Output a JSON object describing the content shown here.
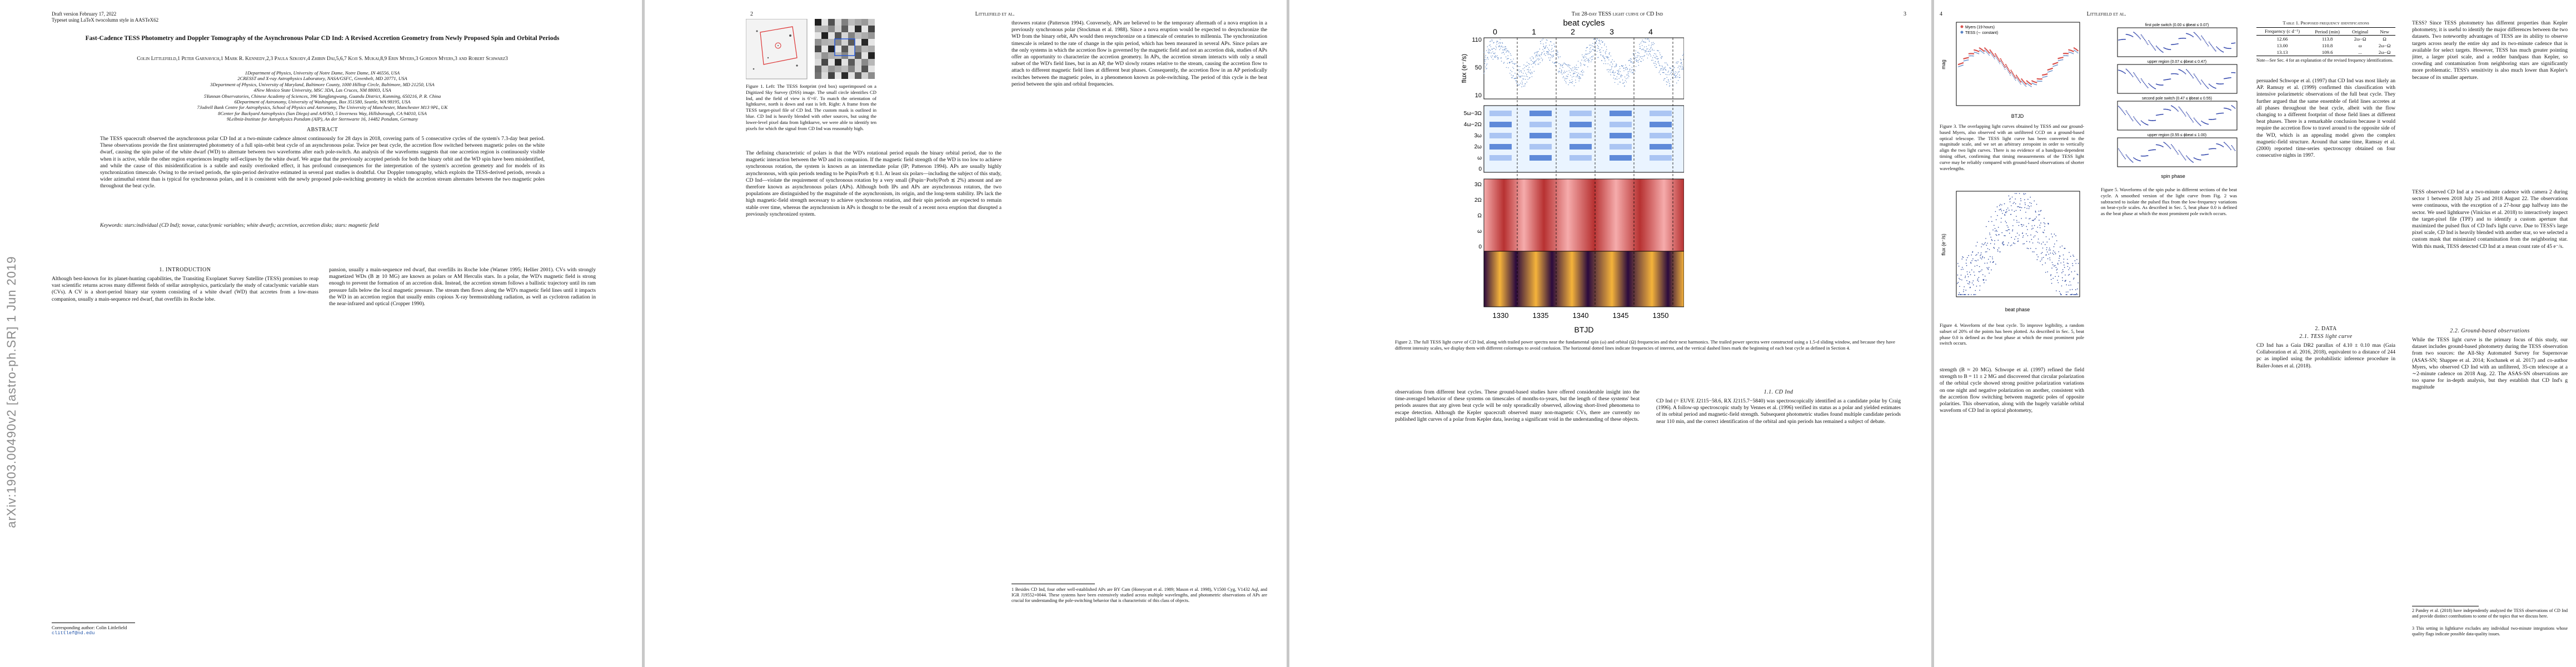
{
  "arxiv_id": "arXiv:1903.00490v2 [astro-ph.SR] 1 Jun 2019",
  "page1": {
    "draft": "Draft version February 17, 2022",
    "typeset": "Typeset using LaTeX twocolumn style in AASTeX62",
    "title": "Fast-Cadence TESS Photometry and Doppler Tomography of the Asynchronous Polar CD Ind: A Revised Accretion Geometry from Newly Proposed Spin and Orbital Periods",
    "authors": "Colin Littlefield,1 Peter Garnavich,1 Mark R. Kennedy,2,3 Paula Szkody,4 Zhibin Dai,5,6,7 Koji S. Mukai,8,9 Erin Myers,3 Gordon Myers,3 and Robert Schwarz3",
    "affiliations": [
      "1Department of Physics, University of Notre Dame, Notre Dame, IN 46556, USA",
      "2CRESST and X-ray Astrophysics Laboratory, NASA/GSFC, Greenbelt, MD 20771, USA",
      "3Department of Physics, University of Maryland, Baltimore County, 1000 Hilltop Circle, Baltimore, MD 21250, USA",
      "4New Mexico State University, MSC 3DA, Las Cruces, NM 88003, USA",
      "5Yunnan Observatories, Chinese Academy of Sciences, 396 Yangfangwang, Guandu District, Kunming, 650216, P. R. China",
      "6Department of Astronomy, University of Washington, Box 351580, Seattle, WA 98195, USA",
      "7Jodrell Bank Centre for Astrophysics, School of Physics and Astronomy, The University of Manchester, Manchester M13 9PL, UK",
      "8Center for Backyard Astrophysics (San Diego) and AAVSO, 5 Inverness Way, Hillsborough, CA 94010, USA",
      "9Leibniz-Institute for Astrophysics Potsdam (AIP), An der Sternwarte 16, 14482 Potsdam, Germany"
    ],
    "abstract_heading": "ABSTRACT",
    "abstract": "The TESS spacecraft observed the asynchronous polar CD Ind at a two-minute cadence almost continuously for 28 days in 2018, covering parts of 5 consecutive cycles of the system's 7.3-day beat period. These observations provide the first uninterrupted photometry of a full spin-orbit beat cycle of an asynchronous polar. Twice per beat cycle, the accretion flow switched between magnetic poles on the white dwarf, causing the spin pulse of the white dwarf (WD) to alternate between two waveforms after each pole-switch. An analysis of the waveforms suggests that one accretion region is continuously visible when it is active, while the other region experiences lengthy self-eclipses by the white dwarf. We argue that the previously accepted periods for both the binary orbit and the WD spin have been misidentified, and while the cause of this misidentification is a subtle and easily overlooked effect, it has profound consequences for the interpretation of the system's accretion geometry and for models of its synchronization timescale. Owing to the revised periods, the spin-period derivative estimated in several past studies is doubtful. Our Doppler tomography, which exploits the TESS-derived periods, reveals a wider azimuthal extent than is typical for synchronous polars, and it is consistent with the newly proposed pole-switching geometry in which the accretion stream alternates between the two magnetic poles throughout the beat cycle.",
    "keywords": "Keywords: stars:individual (CD Ind); novae, cataclysmic variables; white dwarfs; accretion, accretion disks; stars: magnetic field",
    "intro_heading": "1. INTRODUCTION",
    "intro_col1": "Although best-known for its planet-hunting capabilities, the Transiting Exoplanet Survey Satellite (TESS) promises to reap vast scientific returns across many different fields of stellar astrophysics, particularly the study of cataclysmic variable stars (CVs). A CV is a short-period binary star system consisting of a white dwarf (WD) that accretes from a low-mass companion, usually a main-sequence red dwarf, that overfills its Roche lobe.",
    "intro_col2": "pansion, usually a main-sequence red dwarf, that overfills its Roche lobe (Warner 1995; Hellier 2001). CVs with strongly magnetized WDs (B ≳ 10 MG) are known as polars or AM Herculis stars. In a polar, the WD's magnetic field is strong enough to prevent the formation of an accretion disk. Instead, the accretion stream follows a ballistic trajectory until its ram pressure falls below the local magnetic pressure. The stream then flows along the WD's magnetic field lines until it impacts the WD in an accretion region that usually emits copious X-ray bremsstrahlung radiation, as well as cyclotron radiation in the near-infrared and optical (Cropper 1990).",
    "corresponding": "Corresponding author: Colin Littlefield",
    "email": "clittlef@nd.edu"
  },
  "page2": {
    "header_left": "2",
    "header_center": "Littlefield et al.",
    "fig1_caption": "Figure 1. Left: The TESS footprint (red box) superimposed on a Digitized Sky Survey (DSS) image. The small circle identifies CD Ind, and the field of view is 6'×6'. To match the orientation of lightkurve, north is down and east is left. Right: A frame from the TESS target-pixel file of CD Ind. The custom mask is outlined in blue. CD Ind is heavily blended with other sources, but using the lower-level pixel data from lightkurve, we were able to identify ten pixels for which the signal from CD Ind was reasonably high.",
    "col1_body": "The defining characteristic of polars is that the WD's rotational period equals the binary orbital period, due to the magnetic interaction between the WD and its companion. If the magnetic field strength of the WD is too low to achieve synchronous rotation, the system is known as an intermediate polar (IP; Patterson 1994). APs are usually highly asynchronous, with spin periods tending to be Pspin/Porb ≲ 0.1. At least six polars—including the subject of this study, CD Ind—violate the requirement of synchronous rotation by a very small (|Pspin−Porb|/Porb ≲ 2%) amount and are therefore known as asynchronous polars (APs). Although both IPs and APs are asynchronous rotators, the two populations are distinguished by the magnitude of the asynchronism, its origin, and the long-term stability. IPs lack the high magnetic-field strength necessary to achieve synchronous rotation, and their spin periods are expected to remain stable over time, whereas the asynchronism in APs is thought to be the result of a recent nova eruption that disrupted a previously synchronized system.",
    "col2_body": "throwers rotator (Patterson 1994). Conversely, APs are believed to be the temporary aftermath of a nova eruption in a previously synchronous polar (Stockman et al. 1988). Since a nova eruption would be expected to desynchronize the WD from the binary orbit, APs would then resynchronize on a timescale of centuries to millennia. The synchronization timescale is related to the rate of change in the spin period, which has been measured in several APs. Since polars are the only systems in which the accretion flow is governed by the magnetic field and not an accretion disk, studies of APs offer an opportunity to characterize the accretion geometry. In APs, the accretion stream interacts with only a small subset of the WD's field lines, but in an AP, the WD slowly rotates relative to the stream, causing the accretion flow to attach to different magnetic field lines at different beat phases. Consequently, the accretion flow in an AP periodically switches between the magnetic poles, in a phenomenon known as pole-switching. The period of this cycle is the beat period between the spin and orbital frequencies.",
    "fn1": "1 Besides CD Ind, four other well-established APs are BY Cam (Honeycutt et al. 1989; Mason et al. 1998), V1500 Cyg, V1432 Aql, and IGR J19552+0044. These systems have been extensively studied across multiple wavelengths, and photometric observations of APs are crucial for understanding the pole-switching behavior that is characteristic of this class of objects."
  },
  "page3": {
    "header_center": "The 28-day TESS light curve of CD Ind",
    "header_right": "3",
    "beat_title": "beat cycles",
    "beat_ticks": [
      "0",
      "1",
      "2",
      "3",
      "4"
    ],
    "flux_ylabel": "flux (e⁻/s)",
    "flux_yticks": [
      "110",
      "50",
      "10"
    ],
    "spin_ylabel": "ω",
    "spin_yticks": [
      "5ω−3Ω",
      "4ω−2Ω",
      "3ω",
      "2ω",
      "ω",
      "0"
    ],
    "orb_yticks": [
      "3Ω",
      "2Ω",
      "Ω",
      "ω",
      "0"
    ],
    "xlabel": "BTJD",
    "xticks": [
      "1330",
      "1335",
      "1340",
      "1345",
      "1350"
    ],
    "fig2_caption": "Figure 2. The full TESS light curve of CD Ind, along with trailed power spectra near the fundamental spin (ω) and orbital (Ω) frequencies and their next harmonics. The trailed power spectra were constructed using a 1.5-d sliding window, and because they have different intensity scales, we display them with different colormaps to avoid confusion. The horizontal dotted lines indicate frequencies of interest, and the vertical dashed lines mark the beginning of each beat cycle as defined in Section 4.",
    "col1_body": "observations from different beat cycles. These ground-based studies have offered considerable insight into the time-averaged behavior of these systems on timescales of months-to-years, but the length of these systems' beat periods assures that any given beat cycle will be only sporadically observed, allowing short-lived phenomena to escape detection. Although the Kepler spacecraft observed many non-magnetic CVs, there are currently no published light curves of a polar from Kepler data, leaving a significant void in the understanding of these objects.",
    "cd_ind_heading": "1.1. CD Ind",
    "col2_body": "CD Ind (= EUVE J2115−58.6, RX J2115.7−5840) was spectroscopically identified as a candidate polar by Craig (1996). A follow-up spectroscopic study by Vennes et al. (1996) verified its status as a polar and yielded estimates of its orbital period and magnetic-field strength. Subsequent photometric studies found multiple candidate periods near 110 min, and the correct identification of the orbital and spin periods has remained a subject of debate."
  },
  "page4": {
    "header_left": "4",
    "header_center": "Littlefield et al.",
    "table_title": "Table 1. Proposed frequency identifications",
    "table_headers": [
      "Frequency (c d⁻¹)",
      "Period (min)",
      "Original",
      "New"
    ],
    "table_rows": [
      [
        "12.66",
        "113.8",
        "2ω−Ω",
        "Ω"
      ],
      [
        "13.00",
        "110.8",
        "ω",
        "2ω−Ω"
      ],
      [
        "13.13",
        "109.6",
        "...",
        "2ω−Ω"
      ]
    ],
    "table_note": "Note—See Sec. 4 for an explanation of the revised frequency identifications.",
    "fig3_legend": [
      "Myers (19 hours)",
      "TESS (∼ constant)"
    ],
    "fig3_ylabel": "mag",
    "fig3_xlabel": "BTJD",
    "fig3_caption": "Figure 3. The overlapping light curves obtained by TESS and our ground-based Myers, also observed with an unfiltered CCD on a ground-based optical telescope. The TESS light curve has been converted to the magnitude scale, and we set an arbitrary zeropoint in order to vertically align the two light curves. There is no evidence of a bandpass-dependent timing offset, confirming that timing measurements of the TESS light curve may be reliably compared with ground-based observations of shorter wavelengths.",
    "fig4_ylabel": "flux (e⁻/s)",
    "fig4_xlabel": "beat phase",
    "fig4_caption": "Figure 4. Waveform of the beat cycle. To improve legibility, a random subset of 20% of the points has been plotted. As described in Sec. 5, beat phase 0.0 is defined as the beat phase at which the most prominent pole switch occurs.",
    "fig5_panels": [
      "first pole switch (0.00 ≤ ϕbeat ≤ 0.07)",
      "upper region (0.07 ≤ ϕbeat ≤ 0.47)",
      "second pole switch (0.47 ≤ ϕbeat ≤ 0.55)",
      "upper region (0.55 ≤ ϕbeat ≤ 1.00)"
    ],
    "fig5_xlabel": "spin phase",
    "fig5_caption": "Figure 5. Waveforms of the spin pulse in different sections of the beat cycle. A smoothed version of the light curve from Fig. 2 was subtracted to isolate the pulsed flux from the low-frequency variations on beat-cycle scales. As described in Sec. 5, beat phase 0.0 is defined as the beat phase at which the most prominent pole switch occurs.",
    "col1_lower": "strength (B ≈ 20 MG). Schwope et al. (1997) refined the field strength to B = 11 ± 2 MG and discovered that circular polarization of the orbital cycle showed strong positive polarization variations on one night and negative polarization on another, consistent with the accretion flow switching between magnetic poles of opposite polarities. This observation, along with the hugely variable orbital waveform of CD Ind in optical photometry,",
    "col2_upper": "persuaded Schwope et al. (1997) that CD Ind was most likely an AP. Ramsay et al. (1999) confirmed this classification with intensive polarimetric observations of the full beat cycle. They further argued that the same ensemble of field lines accretes at all phases throughout the beat cycle, albeit with the flow changing to a different footprint of those field lines at different beat phases. There is a remarkable conclusion because it would require the accretion flow to travel around to the opposite side of the WD, which is an appealing model given the complex magnetic-field structure. Around that same time, Ramsay et al. (2000) reported time-series spectroscopy obtained on four consecutive nights in 1997.",
    "col3_upper": "TESS? Since TESS photometry has different properties than Kepler photometry, it is useful to identify the major differences between the two datasets. Two noteworthy advantages of TESS are its ability to observe targets across nearly the entire sky and its two-minute cadence that is available for select targets. However, TESS has much greater pointing jitter, a larger pixel scale, and a redder bandpass than Kepler, so crowding and contamination from neighboring stars are significantly more problematic. TESS's sensitivity is also much lower than Kepler's because of its smaller aperture.",
    "col3_mid": "TESS observed CD Ind at a two-minute cadence with camera 2 during sector 1 between 2018 July 25 and 2018 August 22. The observations were continuous, with the exception of a 27-hour gap halfway into the sector. We used lightkurve (Vinícius et al. 2018) to interactively inspect the target-pixel file (TPF) and to identify a custom aperture that maximized the pulsed flux of CD Ind's light curve. Due to TESS's large pixel scale, CD Ind is heavily blended with another star, so we selected a custom mask that minimized contamination from the neighboring star. With this mask, TESS detected CD Ind at a mean count rate of 45 e⁻/s.",
    "sec2_heading": "2. DATA",
    "sec21_heading": "2.1. TESS light curve",
    "col2_lower": "CD Ind has a Gaia DR2 parallax of 4.10 ± 0.10 mas (Gaia Collaboration et al. 2016, 2018), equivalent to a distance of 244 pc as implied using the probabilistic inference procedure in Bailer-Jones et al. (2018).",
    "sec22_heading": "2.2. Ground-based observations",
    "col3_lower": "While the TESS light curve is the primary focus of this study, our dataset includes ground-based photometry during the TESS observation from two sources: the All-Sky Automated Survey for Supernovae (ASAS-SN; Shappee et al. 2014; Kochanek et al. 2017) and co-author Myers, who observed CD Ind with an unfiltered, 35-cm telescope at a ∼2-minute cadence on 2018 Aug. 22. The ASAS-SN observations are too sparse for in-depth analysis, but they establish that CD Ind's g magnitude",
    "fn2": "2 Pandey et al. (2018) have independently analyzed the TESS observations of CD Ind and provide distinct contributions to some of the topics that we discuss here.",
    "fn3": "3 This setting in lightkurve excludes any individual two-minute integrations whose quality flags indicate possible data-quality issues."
  },
  "colors": {
    "page_bg": "#ffffff",
    "canvas_bg": "#c8c8c8",
    "flux_blue": "#5a84c4",
    "orb_red": "#d9534f",
    "trail_dark": "#2b0a3d",
    "trail_hot": "#f5b33b"
  }
}
